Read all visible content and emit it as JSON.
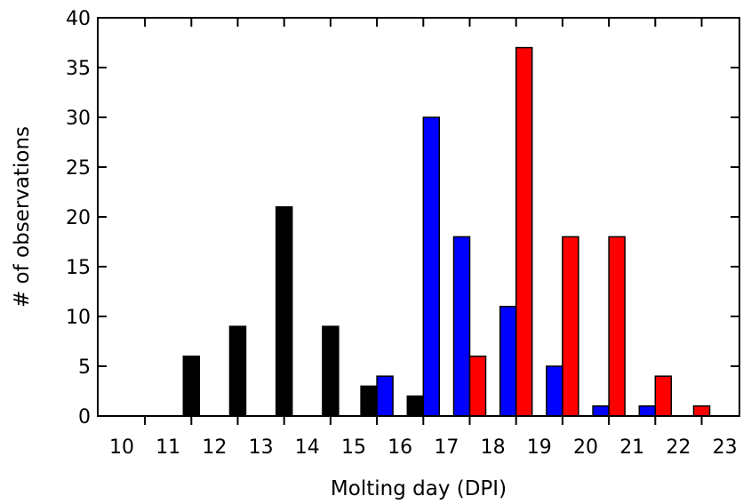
{
  "chart_data": {
    "type": "bar",
    "title": "",
    "xlabel": "Molting day (DPI)",
    "ylabel": "# of observations",
    "ylim": [
      0,
      40
    ],
    "yticks": [
      0,
      5,
      10,
      15,
      20,
      25,
      30,
      35,
      40
    ],
    "categories": [
      "10",
      "11",
      "12",
      "13",
      "14",
      "15",
      "16",
      "17",
      "18",
      "19",
      "20",
      "21",
      "22",
      "23"
    ],
    "grid": false,
    "legend": "none",
    "series": [
      {
        "color": "#000000",
        "values": [
          0,
          6,
          9,
          21,
          9,
          3,
          2,
          0,
          0,
          0,
          0,
          0,
          0,
          0
        ]
      },
      {
        "color": "#0000ff",
        "values": [
          0,
          0,
          0,
          0,
          0,
          4,
          30,
          18,
          11,
          5,
          1,
          1,
          0,
          0
        ]
      },
      {
        "color": "#ff0000",
        "values": [
          0,
          0,
          0,
          0,
          0,
          0,
          0,
          6,
          37,
          18,
          18,
          4,
          1,
          0
        ]
      }
    ]
  }
}
